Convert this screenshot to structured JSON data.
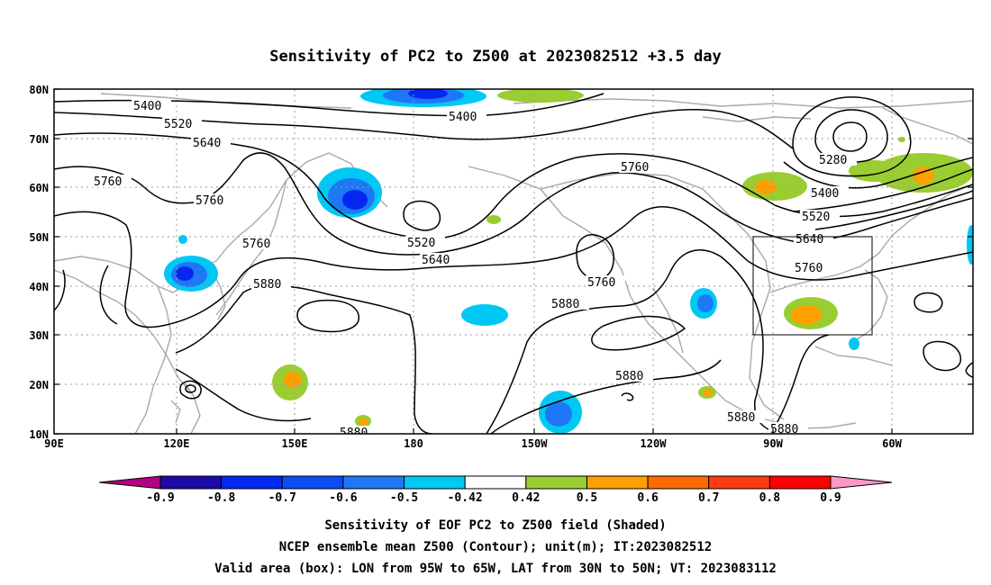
{
  "title": "Sensitivity of PC2 to Z500 at 2023082512 +3.5 day",
  "lat_labels": [
    "80N",
    "70N",
    "60N",
    "50N",
    "40N",
    "30N",
    "20N",
    "10N"
  ],
  "lon_labels": [
    "90E",
    "120E",
    "150E",
    "180",
    "150W",
    "120W",
    "90W",
    "60W"
  ],
  "contour_labels": [
    "5400",
    "5520",
    "5640",
    "5760",
    "5760",
    "5760",
    "5880",
    "5400",
    "5520",
    "5640",
    "5760",
    "5880",
    "5760",
    "5880",
    "5280",
    "5400",
    "5520",
    "5640",
    "5760",
    "5880",
    "5880",
    "5880"
  ],
  "colorbar": {
    "labels": [
      "-0.9",
      "-0.8",
      "-0.7",
      "-0.6",
      "-0.5",
      "-0.42",
      "0.42",
      "0.5",
      "0.6",
      "0.7",
      "0.8",
      "0.9"
    ],
    "colors": [
      "#b10082",
      "#1b0aa6",
      "#0528f0",
      "#0a4cf8",
      "#1e78f5",
      "#00c8f5",
      "#ffffff",
      "#9acd32",
      "#ff9f00",
      "#ff6a00",
      "#ff3c14",
      "#ff0000",
      "#ff96c8"
    ]
  },
  "footer": [
    "Sensitivity of EOF PC2 to Z500 field (Shaded)",
    "NCEP ensemble mean Z500 (Contour); unit(m); IT:2023082512",
    "Valid area (box): LON from 95W to 65W, LAT from 30N to 50N; VT: 2023083112"
  ]
}
